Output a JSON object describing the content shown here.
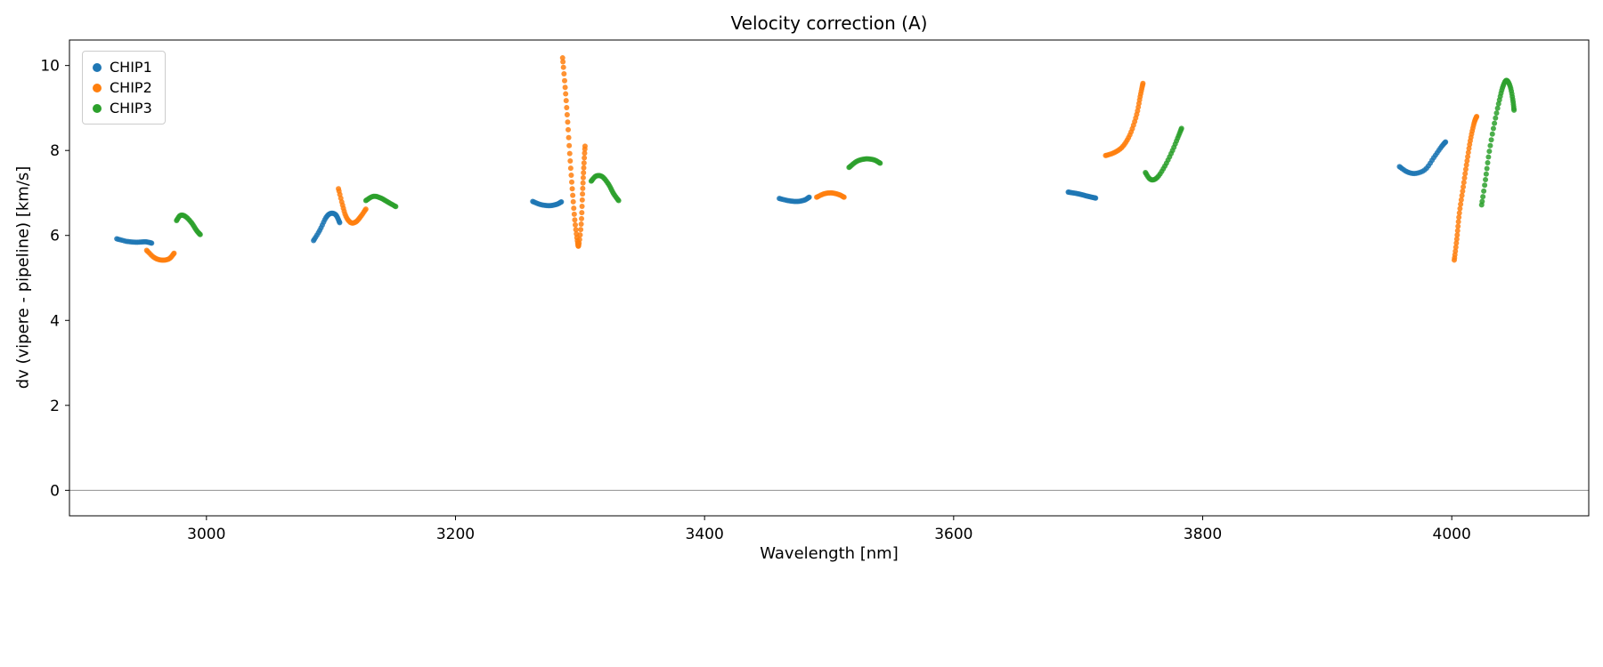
{
  "chart_data": {
    "type": "scatter",
    "title": "Velocity correction (A)",
    "xlabel": "Wavelength [nm]",
    "ylabel": "dv (vipere - pipeline) [km/s]",
    "xlim": [
      2890,
      4110
    ],
    "ylim": [
      -0.6,
      10.6
    ],
    "xticks": [
      3000,
      3200,
      3400,
      3600,
      3800,
      4000
    ],
    "yticks": [
      0,
      2,
      4,
      6,
      8,
      10
    ],
    "axhline_y": 0,
    "axhline_color": "#808080",
    "grid": false,
    "legend_position": "upper left",
    "marker_radius": 3,
    "marker_opacity": 0.85,
    "series": [
      {
        "name": "CHIP1",
        "color": "#1f77b4",
        "segments": [
          {
            "n": 22,
            "keypoints": [
              [
                2928,
                5.92
              ],
              [
                2936,
                5.86
              ],
              [
                2944,
                5.84
              ],
              [
                2951,
                5.85
              ],
              [
                2956,
                5.82
              ]
            ]
          },
          {
            "n": 26,
            "keypoints": [
              [
                3086,
                5.88
              ],
              [
                3091,
                6.12
              ],
              [
                3096,
                6.42
              ],
              [
                3100,
                6.52
              ],
              [
                3104,
                6.48
              ],
              [
                3107,
                6.3
              ]
            ]
          },
          {
            "n": 22,
            "keypoints": [
              [
                3262,
                6.8
              ],
              [
                3268,
                6.73
              ],
              [
                3275,
                6.7
              ],
              [
                3281,
                6.73
              ],
              [
                3285,
                6.79
              ]
            ]
          },
          {
            "n": 22,
            "keypoints": [
              [
                3460,
                6.87
              ],
              [
                3467,
                6.82
              ],
              [
                3474,
                6.8
              ],
              [
                3480,
                6.83
              ],
              [
                3484,
                6.9
              ]
            ]
          },
          {
            "n": 24,
            "keypoints": [
              [
                3692,
                7.02
              ],
              [
                3700,
                6.98
              ],
              [
                3708,
                6.92
              ],
              [
                3714,
                6.88
              ]
            ]
          },
          {
            "n": 30,
            "keypoints": [
              [
                3958,
                7.62
              ],
              [
                3964,
                7.5
              ],
              [
                3971,
                7.46
              ],
              [
                3979,
                7.56
              ],
              [
                3986,
                7.85
              ],
              [
                3992,
                8.1
              ],
              [
                3995,
                8.2
              ]
            ]
          }
        ]
      },
      {
        "name": "CHIP2",
        "color": "#ff7f0e",
        "segments": [
          {
            "n": 22,
            "keypoints": [
              [
                2952,
                5.65
              ],
              [
                2958,
                5.48
              ],
              [
                2964,
                5.42
              ],
              [
                2970,
                5.45
              ],
              [
                2974,
                5.58
              ]
            ]
          },
          {
            "n": 28,
            "keypoints": [
              [
                3106,
                7.1
              ],
              [
                3109,
                6.75
              ],
              [
                3112,
                6.45
              ],
              [
                3116,
                6.3
              ],
              [
                3120,
                6.32
              ],
              [
                3124,
                6.45
              ],
              [
                3128,
                6.62
              ]
            ]
          },
          {
            "n": 55,
            "keypoints": [
              [
                3286,
                10.18
              ],
              [
                3288,
                9.5
              ],
              [
                3290,
                8.7
              ],
              [
                3292,
                7.8
              ],
              [
                3294,
                7.0
              ],
              [
                3296,
                6.3
              ],
              [
                3298,
                5.85
              ],
              [
                3299,
                5.78
              ],
              [
                3301,
                6.3
              ],
              [
                3302,
                7.0
              ],
              [
                3303,
                7.6
              ],
              [
                3304,
                8.1
              ]
            ]
          },
          {
            "n": 22,
            "keypoints": [
              [
                3490,
                6.9
              ],
              [
                3496,
                6.98
              ],
              [
                3502,
                7.0
              ],
              [
                3508,
                6.96
              ],
              [
                3512,
                6.9
              ]
            ]
          },
          {
            "n": 34,
            "keypoints": [
              [
                3722,
                7.88
              ],
              [
                3729,
                7.95
              ],
              [
                3736,
                8.1
              ],
              [
                3742,
                8.4
              ],
              [
                3747,
                8.85
              ],
              [
                3750,
                9.3
              ],
              [
                3752,
                9.58
              ]
            ]
          },
          {
            "n": 42,
            "keypoints": [
              [
                4002,
                5.42
              ],
              [
                4004,
                5.9
              ],
              [
                4006,
                6.5
              ],
              [
                4009,
                7.1
              ],
              [
                4012,
                7.7
              ],
              [
                4015,
                8.25
              ],
              [
                4018,
                8.65
              ],
              [
                4020,
                8.8
              ]
            ]
          }
        ]
      },
      {
        "name": "CHIP3",
        "color": "#2ca02c",
        "segments": [
          {
            "n": 24,
            "keypoints": [
              [
                2976,
                6.35
              ],
              [
                2979,
                6.47
              ],
              [
                2983,
                6.45
              ],
              [
                2988,
                6.3
              ],
              [
                2992,
                6.12
              ],
              [
                2995,
                6.02
              ]
            ]
          },
          {
            "n": 24,
            "keypoints": [
              [
                3128,
                6.82
              ],
              [
                3134,
                6.92
              ],
              [
                3140,
                6.88
              ],
              [
                3146,
                6.78
              ],
              [
                3152,
                6.68
              ]
            ]
          },
          {
            "n": 26,
            "keypoints": [
              [
                3309,
                7.28
              ],
              [
                3313,
                7.4
              ],
              [
                3318,
                7.38
              ],
              [
                3323,
                7.2
              ],
              [
                3327,
                6.98
              ],
              [
                3331,
                6.82
              ]
            ]
          },
          {
            "n": 24,
            "keypoints": [
              [
                3516,
                7.6
              ],
              [
                3522,
                7.74
              ],
              [
                3529,
                7.8
              ],
              [
                3536,
                7.78
              ],
              [
                3541,
                7.7
              ]
            ]
          },
          {
            "n": 30,
            "keypoints": [
              [
                3754,
                7.48
              ],
              [
                3758,
                7.32
              ],
              [
                3763,
                7.35
              ],
              [
                3769,
                7.6
              ],
              [
                3775,
                7.95
              ],
              [
                3780,
                8.3
              ],
              [
                3783,
                8.52
              ]
            ]
          },
          {
            "n": 45,
            "keypoints": [
              [
                4024,
                6.72
              ],
              [
                4027,
                7.3
              ],
              [
                4030,
                7.95
              ],
              [
                4034,
                8.6
              ],
              [
                4038,
                9.15
              ],
              [
                4041,
                9.5
              ],
              [
                4044,
                9.65
              ],
              [
                4047,
                9.5
              ],
              [
                4049,
                9.2
              ],
              [
                4050,
                8.95
              ]
            ]
          }
        ]
      }
    ]
  },
  "legend": {
    "items": [
      {
        "label": "CHIP1"
      },
      {
        "label": "CHIP2"
      },
      {
        "label": "CHIP3"
      }
    ]
  }
}
